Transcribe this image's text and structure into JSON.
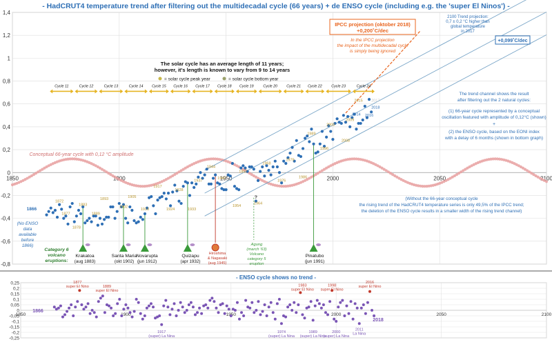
{
  "title": "- HadCRUT4 temperature trend after filtering out the multidecadal cycle (66 years) + de ENSO cycle (including e.g. the 'super El Ninos') -",
  "colors": {
    "title": "#2e6fb5",
    "temp_points": "#2e6fb5",
    "enso_points": "#7a55b5",
    "enso_el_nino": "#c0392b",
    "cycle_points": "#e8a0a0",
    "ipcc": "#e8641e",
    "trend_lines": "#7aa6c8",
    "solar_arrows": "#e6b422",
    "volcano": "#3a9a3a",
    "hiroshima": "#c0392b"
  },
  "main_chart": {
    "xlim": [
      1850,
      2100
    ],
    "ylim": [
      -0.8,
      1.4
    ],
    "x_ticks": [
      "1850",
      "1900",
      "1950",
      "2000",
      "2050",
      "2100"
    ],
    "y_ticks": [
      "-0,8",
      "-0,6",
      "-0,4",
      "-0,2",
      "0",
      "0,2",
      "0,4",
      "0,6",
      "0,8",
      "1",
      "1,2",
      "1,4"
    ],
    "ipcc_box": {
      "line1": "IPCC projection (oktober 2018)",
      "line2": "+0,200˚C/dec"
    },
    "ipcc_note": [
      "In the IPCC projection",
      "the impact of the multidecadal cycle",
      "is simply being ignored"
    ],
    "trend_box": "+0,099˚C/dec",
    "projection_2100": [
      "2100 Trend projection:",
      "0,7 ± 0,2 °C higher than",
      "global temperature",
      "in 2017"
    ],
    "solar_note": [
      "The solar cycle has an average length of 11 years;",
      "however, it's length is known to vary from 9 to 14 years"
    ],
    "legend_peak": "= solar cycle peak year",
    "legend_bottom": "= solar cycle bottom year",
    "solar_cycles": [
      "Cycle 11",
      "Cycle 12",
      "Cycle 13",
      "Cycle 14",
      "Cycle 15",
      "Cycle 16",
      "Cycle 17",
      "Cycle 18",
      "Cycle 19",
      "Cycle 20",
      "Cycle 21",
      "Cycle 22",
      "Cycle 23",
      "Cycle 24"
    ],
    "cycle_label": "Conceptual 66-year cycle with 0,12 °C amplitude",
    "right_text": {
      "p1": [
        "The trend channel shows the result",
        "after filtering out the 2 natural cycles:"
      ],
      "p2": [
        "(1) 66-year cycle represented by a conceptual",
        "oscillation featured with amplitude of 0,12°C (shown)"
      ],
      "plus": "+",
      "p3": [
        "(2) the ENSO cycle, based on the EONI index",
        "with a delay of 6 months (shown in bottom graph)"
      ],
      "p4": [
        "(Without the 66-year conceptual cycle",
        "the rising trend of the HadCRUT4 temperature series is only 49,5% of the IPCC trend;",
        "the deletion of the ENSO cycle results in a smaller width of the rising trend channel)"
      ]
    },
    "no_enso": [
      "(No ENSO",
      "data",
      "available",
      "before",
      "1866)"
    ],
    "volcano_title": [
      "Category 6",
      "volcano",
      "eruptions:"
    ],
    "volcanoes": [
      {
        "name": "Krakatoa",
        "date": "(aug 1883)"
      },
      {
        "name": "Santa Maria",
        "date": "(okt 1902)"
      },
      {
        "name": "Novarupta",
        "date": "(jun 1912)"
      },
      {
        "name": "Quizapu",
        "date": "(apr 1932)"
      },
      {
        "name": "Pinatubo",
        "date": "(jun 1991)"
      }
    ],
    "hiroshima": [
      "Hiroshima",
      "& Nagasaki",
      "(aug 1945)"
    ],
    "agung": [
      "Agung",
      "(march '63)",
      "Volcano",
      "category 5",
      "eruption"
    ],
    "point_labels": {
      "y1866": "1866",
      "y1872": "1872",
      "y1877": "1877",
      "y1878": "1878",
      "y1883": "1883",
      "y1889": "1889",
      "y1893": "1893",
      "y1902": "1902",
      "y1905": "1905",
      "y1913": "1913",
      "y1917": "1917",
      "y1924": "1924",
      "y1928": "1928",
      "y1933": "1933",
      "y1937": "1937",
      "y1944": "1944",
      "y1947": "1947",
      "y1954": "1954",
      "y1957": "1957",
      "y1964": "1964",
      "y1968": "1968",
      "y1976": "1976",
      "y1979": "1979",
      "y1986": "1986",
      "y1989": "1989",
      "y1996": "1996",
      "y2000": "2000",
      "y2008": "2008",
      "y2009": "2009",
      "y2014": "2014",
      "y2015": "2015",
      "y2016": "2016",
      "y2017": "2017",
      "y2018": "2018",
      "q": "?"
    }
  },
  "enso_chart": {
    "title": "- ENSO cycle shows no trend -",
    "xlim": [
      1850,
      2100
    ],
    "ylim": [
      -0.25,
      0.25
    ],
    "x_ticks": [
      "1850",
      "1900",
      "1950",
      "2000",
      "2050",
      "2100"
    ],
    "y_ticks": [
      "-0,25",
      "-0,2",
      "-0,15",
      "-0,1",
      "-0,05",
      "0",
      "0,05",
      "0,1",
      "0,15",
      "0,2",
      "0,25"
    ],
    "start_label": "1866",
    "end_label": "2018",
    "annotations": {
      "a1877": [
        "1877",
        "super El Nino"
      ],
      "a1889": [
        "1889",
        "super El Nino"
      ],
      "a1983": [
        "1983",
        "super El Nino"
      ],
      "a1998": [
        "1998",
        "super El Nino"
      ],
      "a2016": [
        "2016",
        "super El Nino"
      ],
      "a1917": [
        "1917",
        "(super) La Nina"
      ],
      "a1974": [
        "1974",
        "(super) La Nina"
      ],
      "a1989": [
        "1989",
        "(super) La Nina"
      ],
      "a2000": [
        "2000",
        "(super) La Nina"
      ],
      "a2011": [
        "2011",
        "La Nina"
      ]
    }
  },
  "chart_data": [
    {
      "type": "scatter",
      "title": "HadCRUT4 temperature trend after filtering out the multidecadal cycle (66 years) + de ENSO cycle",
      "xlim": [
        1850,
        2100
      ],
      "ylim": [
        -0.8,
        1.4
      ],
      "grid": true,
      "series": [
        {
          "name": "HadCRUT4 filtered",
          "x": [
            1866,
            1867,
            1868,
            1869,
            1870,
            1871,
            1872,
            1873,
            1874,
            1875,
            1876,
            1877,
            1878,
            1879,
            1880,
            1881,
            1882,
            1883,
            1884,
            1885,
            1886,
            1887,
            1888,
            1889,
            1890,
            1891,
            1892,
            1893,
            1894,
            1895,
            1896,
            1897,
            1898,
            1899,
            1900,
            1901,
            1902,
            1903,
            1904,
            1905,
            1906,
            1907,
            1908,
            1909,
            1910,
            1911,
            1912,
            1913,
            1914,
            1915,
            1916,
            1917,
            1918,
            1919,
            1920,
            1921,
            1922,
            1923,
            1924,
            1925,
            1926,
            1927,
            1928,
            1929,
            1930,
            1931,
            1932,
            1933,
            1934,
            1935,
            1936,
            1937,
            1938,
            1939,
            1940,
            1941,
            1942,
            1943,
            1944,
            1945,
            1946,
            1947,
            1948,
            1949,
            1950,
            1951,
            1952,
            1953,
            1954,
            1955,
            1956,
            1957,
            1958,
            1959,
            1960,
            1961,
            1962,
            1963,
            1964,
            1965,
            1966,
            1967,
            1968,
            1969,
            1970,
            1971,
            1972,
            1973,
            1974,
            1975,
            1976,
            1977,
            1978,
            1979,
            1980,
            1981,
            1982,
            1983,
            1984,
            1985,
            1986,
            1987,
            1988,
            1989,
            1990,
            1991,
            1992,
            1993,
            1994,
            1995,
            1996,
            1997,
            1998,
            1999,
            2000,
            2001,
            2002,
            2003,
            2004,
            2005,
            2006,
            2007,
            2008,
            2009,
            2010,
            2011,
            2012,
            2013,
            2014,
            2015,
            2016,
            2017,
            2018
          ],
          "y": [
            -0.37,
            -0.34,
            -0.31,
            -0.35,
            -0.33,
            -0.39,
            -0.28,
            -0.32,
            -0.4,
            -0.38,
            -0.45,
            -0.3,
            -0.27,
            -0.43,
            -0.38,
            -0.33,
            -0.36,
            -0.3,
            -0.44,
            -0.42,
            -0.4,
            -0.43,
            -0.38,
            -0.38,
            -0.46,
            -0.4,
            -0.45,
            -0.41,
            -0.39,
            -0.39,
            -0.3,
            -0.3,
            -0.4,
            -0.34,
            -0.27,
            -0.3,
            -0.28,
            -0.4,
            -0.44,
            -0.3,
            -0.33,
            -0.42,
            -0.44,
            -0.43,
            -0.39,
            -0.41,
            -0.36,
            -0.31,
            -0.22,
            -0.21,
            -0.29,
            -0.36,
            -0.24,
            -0.22,
            -0.21,
            -0.18,
            -0.23,
            -0.18,
            -0.29,
            -0.17,
            -0.11,
            -0.16,
            -0.25,
            -0.27,
            -0.12,
            -0.08,
            -0.09,
            -0.2,
            -0.09,
            -0.13,
            -0.1,
            -0.04,
            0.0,
            -0.05,
            -0.02,
            0.03,
            -0.1,
            -0.1,
            -0.05,
            -0.02,
            -0.09,
            -0.1,
            -0.14,
            -0.15,
            -0.15,
            -0.02,
            -0.03,
            0.08,
            -0.12,
            -0.14,
            -0.15,
            0.04,
            0.06,
            0.04,
            0.01,
            0.05,
            0.05,
            0.03,
            -0.25,
            -0.07,
            0.01,
            0.05,
            -0.03,
            0.06,
            0.02,
            -0.02,
            0.05,
            0.1,
            0.05,
            0.0,
            -0.09,
            0.1,
            0.08,
            0.13,
            0.17,
            0.22,
            0.1,
            0.28,
            0.15,
            0.14,
            0.21,
            0.3,
            0.32,
            0.27,
            0.38,
            0.25,
            0.17,
            0.18,
            0.25,
            0.36,
            0.23,
            0.31,
            0.41,
            0.36,
            0.29,
            0.43,
            0.47,
            0.44,
            0.43,
            0.5,
            0.44,
            0.49,
            0.4,
            0.48,
            0.51,
            0.38,
            0.43,
            0.43,
            0.46,
            0.58,
            0.48,
            0.64,
            0.53
          ]
        }
      ],
      "annotations": [
        "IPCC projection (oktober 2018) +0,200˚C/dec",
        "+0,099˚C/dec",
        "Conceptual 66-year cycle with 0,12 °C amplitude"
      ]
    },
    {
      "type": "scatter",
      "title": "ENSO cycle shows no trend",
      "xlim": [
        1850,
        2100
      ],
      "ylim": [
        -0.25,
        0.25
      ],
      "grid": true,
      "series": [
        {
          "name": "ENSO",
          "x": [
            1866,
            1867,
            1868,
            1869,
            1870,
            1871,
            1872,
            1873,
            1874,
            1875,
            1876,
            1877,
            1878,
            1879,
            1880,
            1881,
            1882,
            1883,
            1884,
            1885,
            1886,
            1887,
            1888,
            1889,
            1890,
            1891,
            1892,
            1893,
            1894,
            1895,
            1896,
            1897,
            1898,
            1899,
            1900,
            1901,
            1902,
            1903,
            1904,
            1905,
            1906,
            1907,
            1908,
            1909,
            1910,
            1911,
            1912,
            1913,
            1914,
            1915,
            1916,
            1917,
            1918,
            1919,
            1920,
            1921,
            1922,
            1923,
            1924,
            1925,
            1926,
            1927,
            1928,
            1929,
            1930,
            1931,
            1932,
            1933,
            1934,
            1935,
            1936,
            1937,
            1938,
            1939,
            1940,
            1941,
            1942,
            1943,
            1944,
            1945,
            1946,
            1947,
            1948,
            1949,
            1950,
            1951,
            1952,
            1953,
            1954,
            1955,
            1956,
            1957,
            1958,
            1959,
            1960,
            1961,
            1962,
            1963,
            1964,
            1965,
            1966,
            1967,
            1968,
            1969,
            1970,
            1971,
            1972,
            1973,
            1974,
            1975,
            1976,
            1977,
            1978,
            1979,
            1980,
            1981,
            1982,
            1983,
            1984,
            1985,
            1986,
            1987,
            1988,
            1989,
            1990,
            1991,
            1992,
            1993,
            1994,
            1995,
            1996,
            1997,
            1998,
            1999,
            2000,
            2001,
            2002,
            2003,
            2004,
            2005,
            2006,
            2007,
            2008,
            2009,
            2010,
            2011,
            2012,
            2013,
            2014,
            2015,
            2016,
            2017,
            2018
          ],
          "y": [
            0.03,
            0.01,
            0.02,
            0.04,
            -0.06,
            -0.04,
            -0.01,
            0.02,
            0.05,
            -0.05,
            0.03,
            0.08,
            0.18,
            0.05,
            0.01,
            0.03,
            0.06,
            -0.03,
            0.0,
            -0.02,
            -0.06,
            0.08,
            0.11,
            0.13,
            -0.02,
            0.05,
            0.04,
            0.02,
            -0.05,
            -0.03,
            0.06,
            0.1,
            -0.05,
            0.01,
            0.05,
            0.02,
            -0.02,
            -0.06,
            -0.01,
            0.1,
            0.07,
            -0.03,
            -0.08,
            -0.05,
            0.02,
            0.04,
            0.06,
            0.03,
            -0.07,
            -0.06,
            -0.05,
            -0.13,
            0.04,
            0.09,
            0.03,
            -0.04,
            0.01,
            0.06,
            -0.05,
            0.0,
            0.07,
            0.03,
            -0.02,
            0.0,
            0.05,
            0.07,
            0.03,
            -0.04,
            -0.02,
            0.02,
            -0.03,
            0.04,
            0.05,
            0.02,
            0.09,
            0.11,
            0.08,
            0.02,
            -0.02,
            0.05,
            0.06,
            -0.03,
            0.04,
            0.01,
            -0.05,
            0.01,
            0.0,
            0.07,
            -0.08,
            -0.02,
            -0.05,
            0.09,
            0.03,
            0.02,
            0.07,
            -0.02,
            0.0,
            0.08,
            -0.04,
            -0.01,
            0.05,
            -0.05,
            0.03,
            0.07,
            -0.02,
            -0.08,
            0.06,
            0.1,
            -0.12,
            -0.05,
            -0.06,
            0.03,
            0.05,
            0.0,
            0.07,
            -0.02,
            0.05,
            0.16,
            -0.04,
            -0.07,
            0.02,
            0.03,
            0.08,
            -0.09,
            0.04,
            0.09,
            0.06,
            0.02,
            0.05,
            -0.02,
            -0.04,
            0.08,
            0.18,
            -0.08,
            -0.1,
            0.03,
            0.07,
            0.09,
            -0.05,
            0.04,
            -0.03,
            0.08,
            -0.08,
            0.06,
            0.02,
            -0.12,
            0.02,
            0.05,
            -0.03,
            0.07,
            0.17,
            0.0,
            -0.05
          ]
        }
      ],
      "annotations": [
        "1877 super El Nino",
        "1889 super El Nino",
        "1983 super El Nino",
        "1998 super El Nino",
        "2016 super El Nino",
        "1917 (super) La Nina",
        "1974 (super) La Nina",
        "1989 (super) La Nina",
        "2000 (super) La Nina",
        "2011 La Nina"
      ]
    }
  ]
}
